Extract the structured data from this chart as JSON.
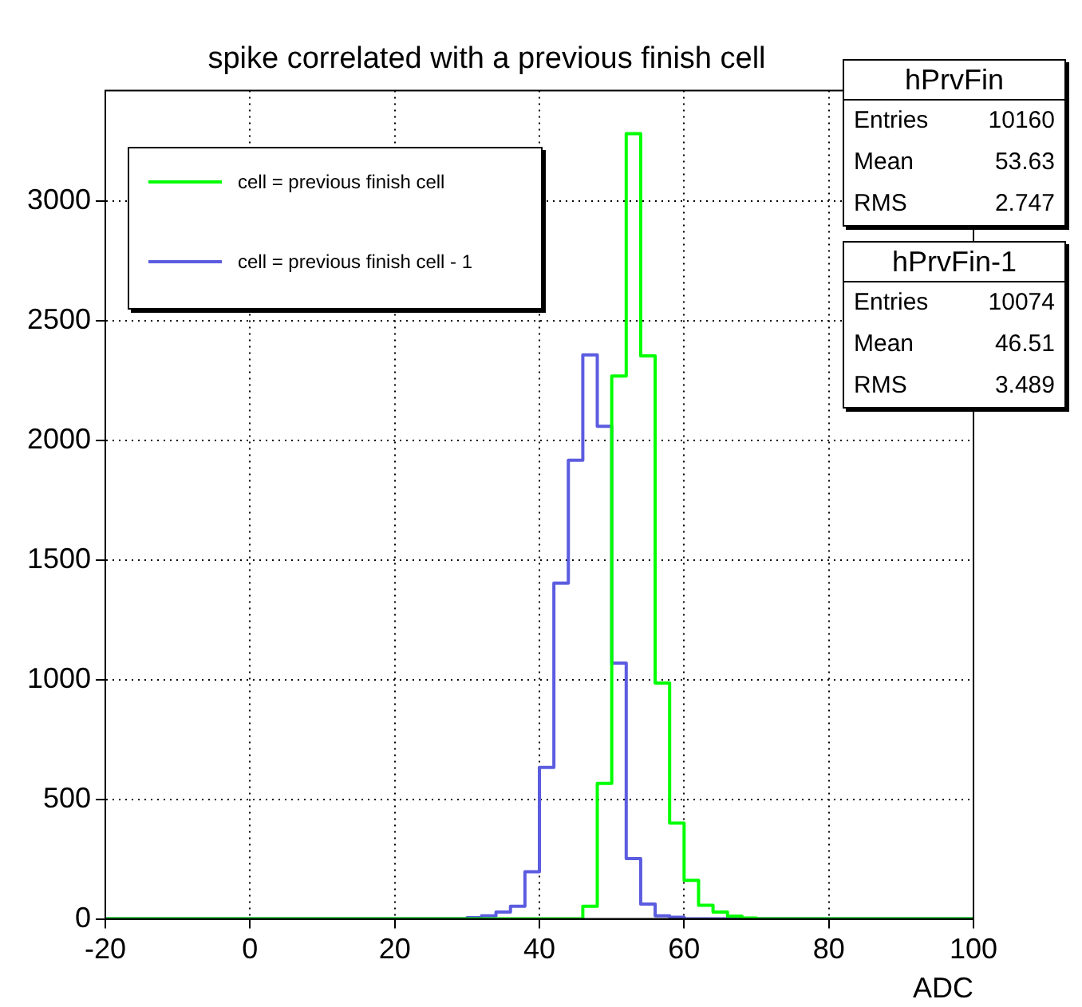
{
  "chart_data": {
    "type": "histogram",
    "title": "spike correlated with a previous finish cell",
    "xlabel": "ADC",
    "bins": [
      -20,
      -18,
      -16,
      -14,
      -12,
      -10,
      -8,
      -6,
      -4,
      -2,
      0,
      2,
      4,
      6,
      8,
      10,
      12,
      14,
      16,
      18,
      20,
      22,
      24,
      26,
      28,
      30,
      32,
      34,
      36,
      38,
      40,
      42,
      44,
      46,
      48,
      50,
      52,
      54,
      56,
      58,
      60,
      62,
      64,
      66,
      68,
      70,
      72,
      74,
      76,
      78,
      80,
      82,
      84,
      86,
      88,
      90,
      92,
      94,
      96,
      98,
      100
    ],
    "series": [
      {
        "name": "cell = previous finish cell",
        "color": "#00ff00",
        "values": [
          0,
          0,
          0,
          0,
          0,
          0,
          0,
          0,
          0,
          0,
          0,
          0,
          0,
          0,
          0,
          0,
          0,
          0,
          0,
          0,
          0,
          0,
          0,
          0,
          0,
          0,
          0,
          0,
          0,
          0,
          0,
          0,
          0,
          53,
          566,
          2268,
          3280,
          2352,
          985,
          400,
          161,
          57,
          29,
          11,
          4,
          0,
          0,
          0,
          0,
          0,
          0,
          0,
          0,
          0,
          0,
          0,
          0,
          0,
          0,
          0
        ]
      },
      {
        "name": "cell = previous finish cell - 1",
        "color": "#5c5ce0",
        "values": [
          0,
          0,
          0,
          0,
          0,
          0,
          0,
          0,
          0,
          0,
          0,
          0,
          0,
          0,
          0,
          0,
          0,
          0,
          0,
          0,
          0,
          0,
          0,
          0,
          0,
          5,
          13,
          29,
          53,
          197,
          633,
          1403,
          1916,
          2356,
          2058,
          1069,
          252,
          62,
          13,
          7,
          0,
          0,
          0,
          0,
          0,
          0,
          0,
          0,
          0,
          0,
          0,
          0,
          0,
          0,
          0,
          0,
          0,
          0,
          0,
          0
        ]
      }
    ],
    "xlim": [
      -20,
      100
    ],
    "xticks": [
      -20,
      0,
      20,
      40,
      60,
      80,
      100
    ],
    "ylim": [
      0,
      3460
    ],
    "yticks": [
      0,
      500,
      1000,
      1500,
      2000,
      2500,
      3000
    ],
    "grid": true,
    "legend": "top left",
    "annotations": [
      "hPrvFin",
      "Entries",
      "10160",
      "Mean",
      "53.63",
      "RMS",
      "2.747",
      "hPrvFin-1",
      "Entries",
      "10074",
      "Mean",
      "46.51",
      "RMS",
      "3.489"
    ]
  }
}
